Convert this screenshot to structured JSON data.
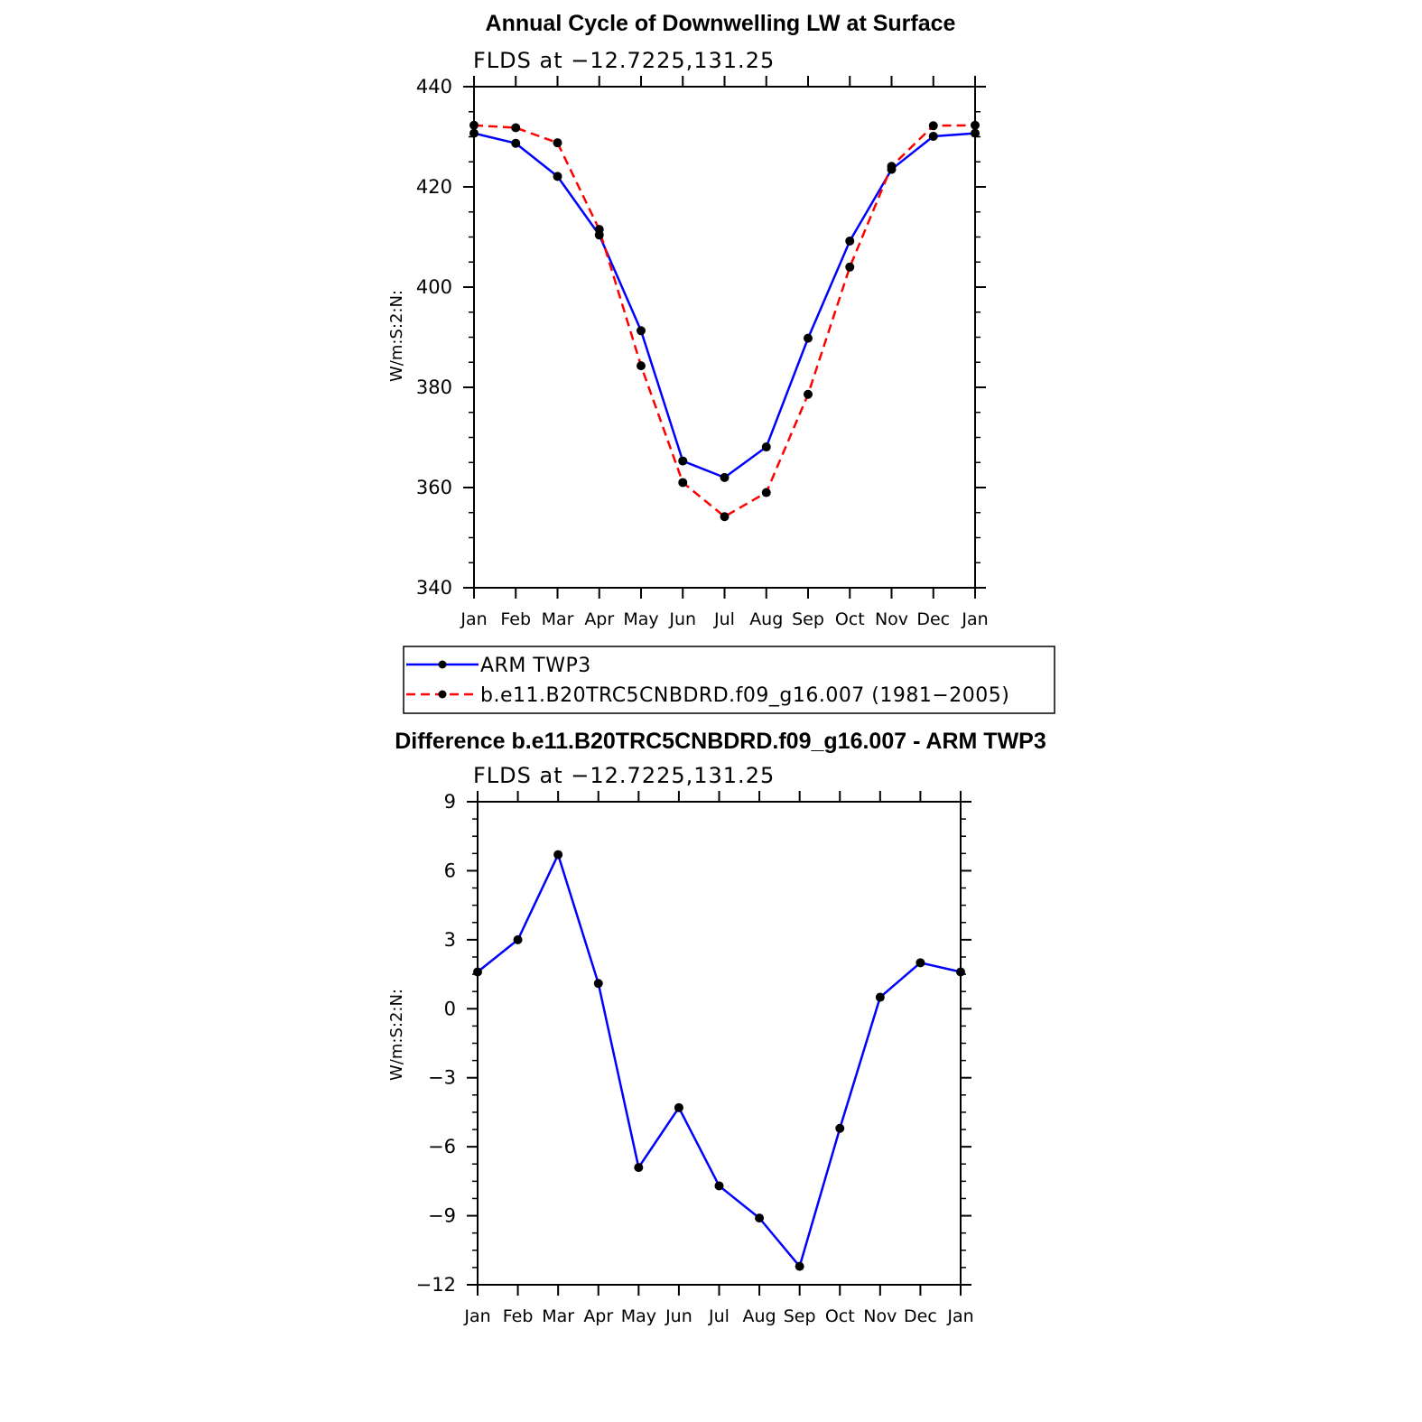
{
  "chart_data": [
    {
      "type": "line",
      "title": "Annual Cycle of Downwelling LW at Surface",
      "subtitle": "FLDS at −12.7225,131.25",
      "ylabel": "W/m:S:2:N:",
      "xlabel": "",
      "categories": [
        "Jan",
        "Feb",
        "Mar",
        "Apr",
        "May",
        "Jun",
        "Jul",
        "Aug",
        "Sep",
        "Oct",
        "Nov",
        "Dec",
        "Jan"
      ],
      "ylim": [
        340,
        440
      ],
      "yticks": [
        340,
        360,
        380,
        400,
        420,
        440
      ],
      "series": [
        {
          "name": "ARM TWP3",
          "color": "#0000ff",
          "dash": "solid",
          "values": [
            430.7,
            428.7,
            422.1,
            410.4,
            391.3,
            365.3,
            362.0,
            368.1,
            389.8,
            409.2,
            423.5,
            430.1,
            430.7
          ]
        },
        {
          "name": "b.e11.B20TRC5CNBDRD.f09_g16.007 (1981−2005)",
          "color": "#ff0000",
          "dash": "dashed",
          "values": [
            432.3,
            431.8,
            428.8,
            411.5,
            384.3,
            361.0,
            354.2,
            359.0,
            378.6,
            404.0,
            424.1,
            432.2,
            432.3
          ]
        }
      ],
      "legend_position": "bottom"
    },
    {
      "type": "line",
      "title": "Difference b.e11.B20TRC5CNBDRD.f09_g16.007 - ARM TWP3",
      "subtitle": "FLDS at −12.7225,131.25",
      "ylabel": "W/m:S:2:N:",
      "xlabel": "",
      "categories": [
        "Jan",
        "Feb",
        "Mar",
        "Apr",
        "May",
        "Jun",
        "Jul",
        "Aug",
        "Sep",
        "Oct",
        "Nov",
        "Dec",
        "Jan"
      ],
      "ylim": [
        -12,
        9
      ],
      "yticks": [
        -12,
        -9,
        -6,
        -3,
        0,
        3,
        6,
        9
      ],
      "ytick_labels": [
        "−12",
        "−9",
        "−6",
        "−3",
        "0",
        "3",
        "6",
        "9"
      ],
      "series": [
        {
          "name": "Difference",
          "color": "#0000ff",
          "dash": "solid",
          "values": [
            1.6,
            3.0,
            6.7,
            1.1,
            -6.9,
            -4.3,
            -7.7,
            -9.1,
            -11.2,
            -5.2,
            0.5,
            2.0,
            1.6
          ]
        }
      ]
    }
  ]
}
